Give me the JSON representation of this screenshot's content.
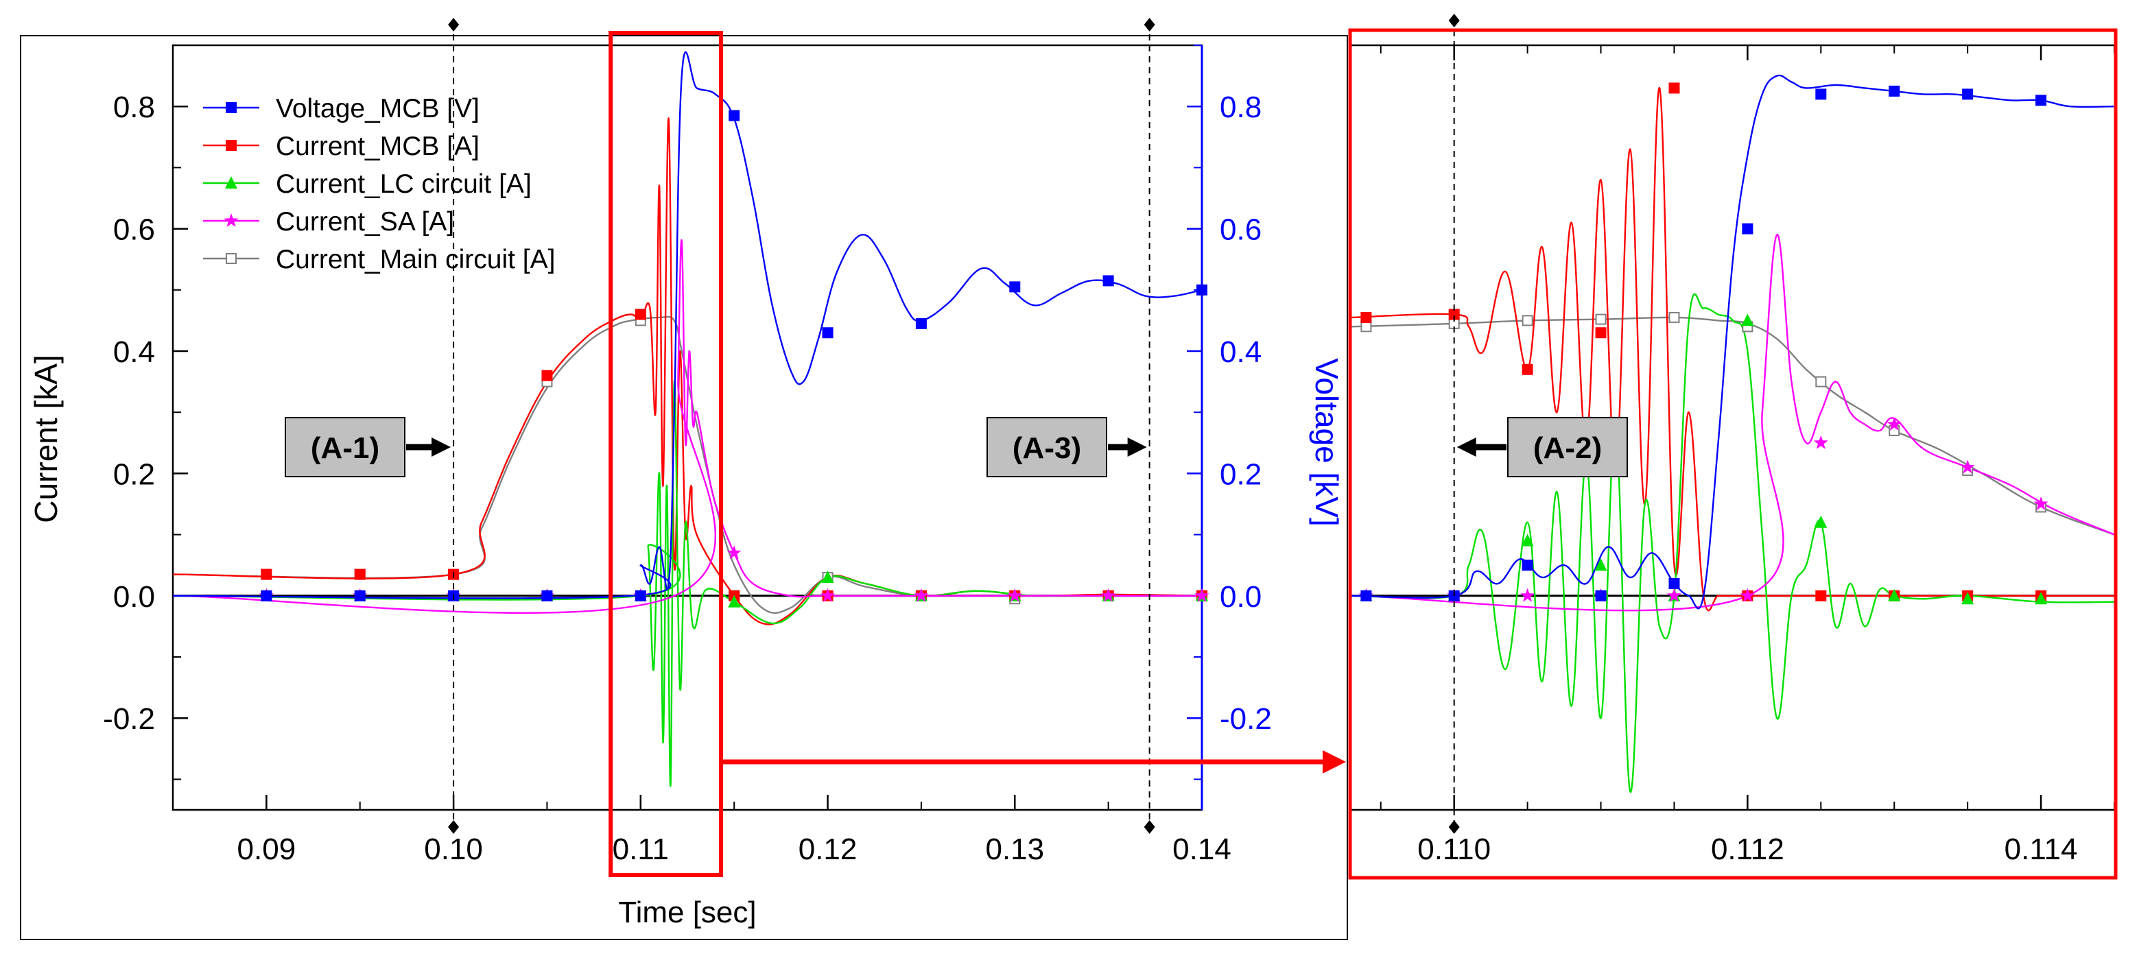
{
  "chart_data": [
    {
      "type": "line",
      "title": "",
      "xlabel": "Time [sec]",
      "ylabel": "Current [kA]",
      "y2label": "Voltage [kV]",
      "xlim": [
        0.085,
        0.14
      ],
      "ylim": [
        -0.35,
        0.9
      ],
      "y2lim": [
        -0.35,
        0.9
      ],
      "xticks": [
        "0.09",
        "0.10",
        "0.11",
        "0.12",
        "0.13",
        "0.14"
      ],
      "xtick_values": [
        0.09,
        0.1,
        0.11,
        0.12,
        0.13,
        0.14
      ],
      "yticks": [
        "-0.2",
        "0.0",
        "0.2",
        "0.4",
        "0.6",
        "0.8"
      ],
      "ytick_values": [
        -0.2,
        0.0,
        0.2,
        0.4,
        0.6,
        0.8
      ],
      "y2ticks": [
        "-0.2",
        "0.0",
        "0.2",
        "0.4",
        "0.6",
        "0.8"
      ],
      "y2tick_values": [
        -0.2,
        0.0,
        0.2,
        0.4,
        0.6,
        0.8
      ],
      "legend_position": "top-left",
      "series": [
        {
          "name": "Voltage_MCB [V]",
          "color": "#0000ff",
          "marker": "square-filled",
          "axis": "right",
          "x": [
            0.085,
            0.1095,
            0.11,
            0.1105,
            0.111,
            0.1115,
            0.1118,
            0.1122,
            0.113,
            0.114,
            0.115,
            0.116,
            0.117,
            0.118,
            0.1187,
            0.1195,
            0.1205,
            0.1218,
            0.123,
            0.1242,
            0.125,
            0.1265,
            0.1282,
            0.1295,
            0.131,
            0.1325,
            0.134,
            0.1355,
            0.137,
            0.1385,
            0.14
          ],
          "y": [
            0.0,
            0.0,
            0.05,
            0.02,
            0.08,
            0.02,
            0.3,
            0.85,
            0.83,
            0.82,
            0.78,
            0.65,
            0.48,
            0.37,
            0.35,
            0.42,
            0.53,
            0.59,
            0.55,
            0.47,
            0.45,
            0.48,
            0.535,
            0.51,
            0.475,
            0.495,
            0.515,
            0.51,
            0.49,
            0.49,
            0.5
          ],
          "markers_x": [
            0.09,
            0.095,
            0.1,
            0.105,
            0.11,
            0.115,
            0.12,
            0.125,
            0.13,
            0.135,
            0.14
          ],
          "markers_y": [
            0.0,
            0.0,
            0.0,
            0.0,
            0.0,
            0.785,
            0.43,
            0.445,
            0.505,
            0.515,
            0.5
          ]
        },
        {
          "name": "Current_MCB [A]",
          "color": "#ff0000",
          "marker": "square-filled",
          "axis": "left",
          "x": [
            0.085,
            0.1,
            0.1015,
            0.103,
            0.105,
            0.107,
            0.1085,
            0.1095,
            0.11,
            0.1105,
            0.1108,
            0.111,
            0.1112,
            0.1115,
            0.1118,
            0.1121,
            0.1124,
            0.1127,
            0.113,
            0.115,
            0.1165,
            0.118,
            0.12,
            0.122,
            0.125,
            0.128,
            0.131,
            0.135,
            0.14
          ],
          "y": [
            0.035,
            0.035,
            0.12,
            0.23,
            0.35,
            0.42,
            0.45,
            0.46,
            0.45,
            0.47,
            0.3,
            0.67,
            0.18,
            0.78,
            0.05,
            0.4,
            0.1,
            0.18,
            0.1,
            0.0,
            -0.045,
            -0.03,
            0.03,
            0.02,
            0.0,
            0.008,
            0.0,
            0.002,
            0.0
          ],
          "markers_x": [
            0.09,
            0.095,
            0.1,
            0.105,
            0.11,
            0.115,
            0.12,
            0.125,
            0.13,
            0.135,
            0.14
          ],
          "markers_y": [
            0.035,
            0.035,
            0.035,
            0.36,
            0.46,
            0.0,
            0.0,
            0.0,
            0.0,
            0.0,
            0.0
          ]
        },
        {
          "name": "Current_LC circuit [A]",
          "color": "#00e000",
          "marker": "triangle-filled",
          "axis": "left",
          "x": [
            0.085,
            0.11,
            0.1104,
            0.1107,
            0.111,
            0.1112,
            0.1114,
            0.1116,
            0.1118,
            0.1121,
            0.1124,
            0.1128,
            0.1135,
            0.115,
            0.117,
            0.1185,
            0.12,
            0.122,
            0.125,
            0.128,
            0.131,
            0.135,
            0.14
          ],
          "y": [
            0.0,
            0.0,
            0.08,
            -0.12,
            0.2,
            -0.24,
            0.18,
            -0.31,
            0.35,
            -0.15,
            0.12,
            -0.05,
            0.01,
            -0.01,
            -0.045,
            -0.02,
            0.03,
            0.02,
            0.0,
            0.008,
            0.0,
            0.0,
            0.0
          ],
          "markers_x": [
            0.09,
            0.095,
            0.1,
            0.105,
            0.11,
            0.115,
            0.12,
            0.125,
            0.13,
            0.135,
            0.14
          ],
          "markers_y": [
            0.0,
            0.0,
            0.0,
            0.0,
            0.0,
            -0.01,
            0.03,
            0.0,
            0.0,
            0.0,
            0.0
          ]
        },
        {
          "name": "Current_SA [A]",
          "color": "#ff00ff",
          "marker": "star-filled",
          "axis": "left",
          "x": [
            0.085,
            0.1118,
            0.112,
            0.1122,
            0.1124,
            0.1126,
            0.1128,
            0.113,
            0.1135,
            0.114,
            0.115,
            0.116,
            0.118,
            0.12,
            0.125,
            0.13,
            0.14
          ],
          "y": [
            0.0,
            0.0,
            0.35,
            0.58,
            0.25,
            0.4,
            0.28,
            0.3,
            0.22,
            0.15,
            0.07,
            0.02,
            0.0,
            0.0,
            0.0,
            0.0,
            0.0
          ],
          "markers_x": [
            0.09,
            0.095,
            0.1,
            0.105,
            0.11,
            0.115,
            0.12,
            0.125,
            0.13,
            0.135,
            0.14
          ],
          "markers_y": [
            0.0,
            0.0,
            0.0,
            0.0,
            0.0,
            0.07,
            0.0,
            0.0,
            0.0,
            0.0,
            0.0
          ]
        },
        {
          "name": "Current_Main circuit [A]",
          "color": "#7f7f7f",
          "marker": "square-open",
          "axis": "left",
          "x": [
            0.085,
            0.1,
            0.1015,
            0.103,
            0.105,
            0.107,
            0.1085,
            0.1095,
            0.111,
            0.1118,
            0.1122,
            0.113,
            0.114,
            0.115,
            0.1165,
            0.118,
            0.12,
            0.122,
            0.125,
            0.128,
            0.131,
            0.135,
            0.14
          ],
          "y": [
            0.035,
            0.035,
            0.11,
            0.22,
            0.34,
            0.41,
            0.44,
            0.45,
            0.455,
            0.45,
            0.4,
            0.28,
            0.15,
            0.05,
            -0.02,
            -0.02,
            0.03,
            0.015,
            0.0,
            0.008,
            0.0,
            0.002,
            0.0
          ],
          "markers_x": [
            0.09,
            0.095,
            0.1,
            0.105,
            0.11,
            0.115,
            0.12,
            0.125,
            0.13,
            0.135,
            0.14
          ],
          "markers_y": [
            0.035,
            0.035,
            0.035,
            0.35,
            0.45,
            0.0,
            0.03,
            0.0,
            -0.005,
            0.0,
            0.0
          ]
        }
      ],
      "annotations": [
        {
          "label": "(A-1)",
          "arrow": "right",
          "at_x": 0.1
        },
        {
          "label": "(A-3)",
          "arrow": "right",
          "at_x": 0.1372
        }
      ],
      "marker_lines_x": [
        0.1,
        0.1372
      ],
      "highlight_xrange": [
        0.1084,
        0.1143
      ]
    },
    {
      "type": "line",
      "title": "",
      "xlabel": "",
      "ylabel": "",
      "xlim": [
        0.1093,
        0.1145
      ],
      "ylim": [
        -0.35,
        0.9
      ],
      "xticks": [
        "0.110",
        "0.112",
        "0.114"
      ],
      "xtick_values": [
        0.11,
        0.112,
        0.114
      ],
      "series": [
        {
          "name": "Voltage_MCB [V]",
          "color": "#0000ff",
          "marker": "square-filled",
          "x": [
            0.1093,
            0.11,
            0.11015,
            0.1103,
            0.11045,
            0.1106,
            0.11075,
            0.1109,
            0.11105,
            0.1112,
            0.11135,
            0.1115,
            0.1116,
            0.1117,
            0.1118,
            0.1119,
            0.112,
            0.1121,
            0.1122,
            0.1123,
            0.1124,
            0.1126,
            0.1128,
            0.113,
            0.1132,
            0.1134,
            0.1136,
            0.1138,
            0.114,
            0.1142,
            0.1145
          ],
          "y": [
            0.0,
            0.0,
            0.04,
            0.02,
            0.06,
            0.03,
            0.05,
            0.02,
            0.08,
            0.03,
            0.07,
            0.02,
            0.0,
            0.0,
            0.25,
            0.55,
            0.72,
            0.82,
            0.85,
            0.84,
            0.83,
            0.835,
            0.83,
            0.825,
            0.82,
            0.82,
            0.815,
            0.81,
            0.81,
            0.8,
            0.8
          ],
          "markers_x": [
            0.1094,
            0.11,
            0.1105,
            0.111,
            0.1115,
            0.112,
            0.1125,
            0.113,
            0.1135,
            0.114
          ],
          "markers_y": [
            0.0,
            0.0,
            0.05,
            0.0,
            0.02,
            0.6,
            0.82,
            0.825,
            0.82,
            0.81
          ]
        },
        {
          "name": "Current_MCB [A]",
          "color": "#ff0000",
          "marker": "square-filled",
          "x": [
            0.1093,
            0.11,
            0.1101,
            0.1102,
            0.11035,
            0.1105,
            0.1106,
            0.1107,
            0.1108,
            0.1109,
            0.111,
            0.1111,
            0.1112,
            0.1113,
            0.1114,
            0.1115,
            0.1116,
            0.1117,
            0.1118,
            0.1119,
            0.112,
            0.1125,
            0.113,
            0.1135,
            0.114,
            0.1145
          ],
          "y": [
            0.455,
            0.46,
            0.44,
            0.4,
            0.53,
            0.37,
            0.57,
            0.3,
            0.61,
            0.25,
            0.68,
            0.2,
            0.73,
            0.15,
            0.83,
            0.05,
            0.3,
            0.0,
            0.0,
            0.0,
            0.0,
            0.0,
            0.0,
            0.0,
            0.0,
            0.0
          ],
          "markers_x": [
            0.1094,
            0.11,
            0.1105,
            0.111,
            0.1115,
            0.112,
            0.1125,
            0.113,
            0.1135,
            0.114
          ],
          "markers_y": [
            0.455,
            0.46,
            0.37,
            0.43,
            0.83,
            0.0,
            0.0,
            0.0,
            0.0,
            0.0
          ]
        },
        {
          "name": "Current_LC circuit [A]",
          "color": "#00e000",
          "marker": "triangle-filled",
          "x": [
            0.1093,
            0.11,
            0.1101,
            0.1102,
            0.11035,
            0.1105,
            0.1106,
            0.1107,
            0.1108,
            0.1109,
            0.111,
            0.1111,
            0.1112,
            0.1113,
            0.1114,
            0.1115,
            0.1116,
            0.1117,
            0.1118,
            0.1119,
            0.112,
            0.1121,
            0.1122,
            0.1123,
            0.1124,
            0.1125,
            0.1126,
            0.1127,
            0.1128,
            0.1129,
            0.113,
            0.1132,
            0.1135,
            0.114,
            0.1145
          ],
          "y": [
            0.0,
            0.0,
            0.05,
            0.1,
            -0.12,
            0.12,
            -0.14,
            0.17,
            -0.18,
            0.22,
            -0.2,
            0.28,
            -0.32,
            0.15,
            -0.05,
            0.0,
            0.45,
            0.47,
            0.46,
            0.45,
            0.4,
            0.1,
            -0.2,
            0.0,
            0.05,
            0.12,
            -0.05,
            0.02,
            -0.05,
            0.01,
            0.0,
            -0.005,
            0.0,
            -0.01,
            -0.01
          ],
          "markers_x": [
            0.1094,
            0.11,
            0.1105,
            0.111,
            0.1115,
            0.112,
            0.1125,
            0.113,
            0.1135,
            0.114
          ],
          "markers_y": [
            0.0,
            0.0,
            0.09,
            0.05,
            0.0,
            0.45,
            0.12,
            0.0,
            -0.005,
            -0.005
          ]
        },
        {
          "name": "Current_SA [A]",
          "color": "#ff00ff",
          "marker": "star-filled",
          "x": [
            0.1093,
            0.112,
            0.1121,
            0.1122,
            0.1123,
            0.1124,
            0.1125,
            0.1126,
            0.1127,
            0.1128,
            0.1129,
            0.113,
            0.1132,
            0.1135,
            0.1138,
            0.1141,
            0.1145
          ],
          "y": [
            0.0,
            0.0,
            0.3,
            0.59,
            0.35,
            0.25,
            0.3,
            0.35,
            0.3,
            0.28,
            0.27,
            0.29,
            0.24,
            0.21,
            0.18,
            0.14,
            0.1
          ],
          "markers_x": [
            0.1094,
            0.11,
            0.1105,
            0.111,
            0.1115,
            0.112,
            0.1125,
            0.113,
            0.1135,
            0.114
          ],
          "markers_y": [
            0.0,
            0.0,
            0.0,
            0.0,
            0.0,
            0.0,
            0.25,
            0.28,
            0.21,
            0.15
          ]
        },
        {
          "name": "Current_Main circuit [A]",
          "color": "#7f7f7f",
          "marker": "square-open",
          "x": [
            0.1093,
            0.11,
            0.1105,
            0.111,
            0.1115,
            0.1118,
            0.112,
            0.1122,
            0.1124,
            0.1126,
            0.1128,
            0.113,
            0.1133,
            0.1136,
            0.114,
            0.1145
          ],
          "y": [
            0.44,
            0.445,
            0.45,
            0.452,
            0.455,
            0.45,
            0.445,
            0.42,
            0.37,
            0.33,
            0.3,
            0.27,
            0.24,
            0.2,
            0.145,
            0.1
          ],
          "markers_x": [
            0.1094,
            0.11,
            0.1105,
            0.111,
            0.1115,
            0.112,
            0.1125,
            0.113,
            0.1135,
            0.114
          ],
          "markers_y": [
            0.44,
            0.445,
            0.45,
            0.452,
            0.455,
            0.44,
            0.35,
            0.27,
            0.205,
            0.145
          ]
        }
      ],
      "annotations": [
        {
          "label": "(A-2)",
          "arrow": "left",
          "at_x": 0.11
        }
      ],
      "marker_lines_x": [
        0.11
      ]
    }
  ]
}
